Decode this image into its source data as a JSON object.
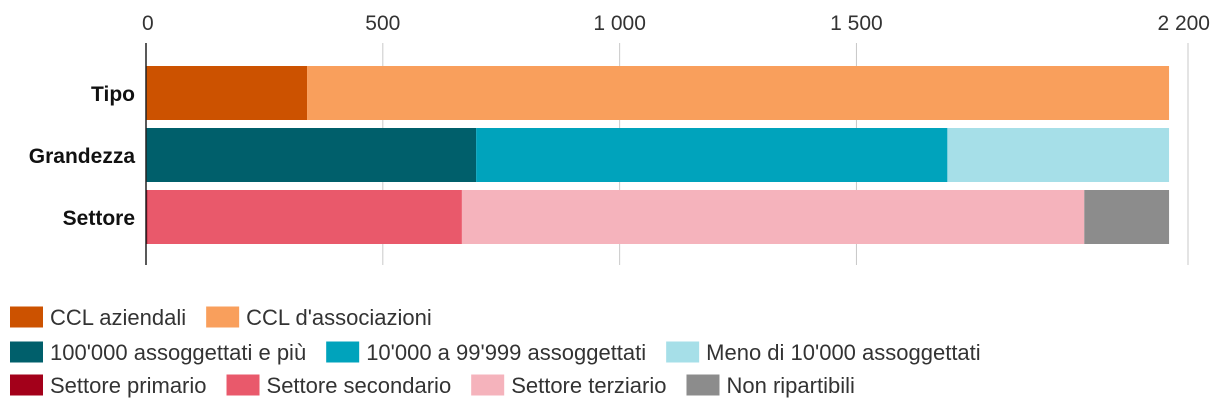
{
  "chart_data": {
    "type": "bar",
    "orientation": "horizontal",
    "stacked": true,
    "xlim": [
      0,
      2200
    ],
    "ticks": [
      {
        "value": 0,
        "label": "0"
      },
      {
        "value": 500,
        "label": "500"
      },
      {
        "value": 1000,
        "label": "1 000"
      },
      {
        "value": 1500,
        "label": "1 500"
      },
      {
        "value": 2200,
        "label": "2 200"
      }
    ],
    "grid": true,
    "legend_position": "bottom",
    "categories": [
      "Tipo",
      "Grandezza",
      "Settore"
    ],
    "bars": [
      {
        "category": "Tipo",
        "segments": [
          {
            "name": "CCL aziendali",
            "value": 340,
            "color": "#CC5200"
          },
          {
            "name": "CCL d'associazioni",
            "value": 1820,
            "color": "#F99F5C"
          }
        ]
      },
      {
        "category": "Grandezza",
        "segments": [
          {
            "name": "100'000 assoggettati e più",
            "value": 697,
            "color": "#005F6B"
          },
          {
            "name": "10'000 a 99'999 assoggettati",
            "value": 995,
            "color": "#00A3BC"
          },
          {
            "name": "Meno di 10'000 assoggettati",
            "value": 468,
            "color": "#A6DFE8"
          }
        ]
      },
      {
        "category": "Settore",
        "segments": [
          {
            "name": "Settore primario",
            "value": 3,
            "color": "#A3001A"
          },
          {
            "name": "Settore secondario",
            "value": 664,
            "color": "#E9596B"
          },
          {
            "name": "Settore terziario",
            "value": 1314,
            "color": "#F5B3BC"
          },
          {
            "name": "Non ripartibili",
            "value": 179,
            "color": "#8C8C8C"
          }
        ]
      }
    ],
    "legend_rows": [
      [
        {
          "name": "CCL aziendali",
          "color": "#CC5200"
        },
        {
          "name": "CCL d'associazioni",
          "color": "#F99F5C"
        }
      ],
      [
        {
          "name": "100'000 assoggettati e più",
          "color": "#005F6B"
        },
        {
          "name": "10'000 a 99'999 assoggettati",
          "color": "#00A3BC"
        },
        {
          "name": "Meno di 10'000 assoggettati",
          "color": "#A6DFE8"
        }
      ],
      [
        {
          "name": "Settore primario",
          "color": "#A3001A"
        },
        {
          "name": "Settore secondario",
          "color": "#E9596B"
        },
        {
          "name": "Settore terziario",
          "color": "#F5B3BC"
        },
        {
          "name": "Non ripartibili",
          "color": "#8C8C8C"
        }
      ]
    ]
  }
}
